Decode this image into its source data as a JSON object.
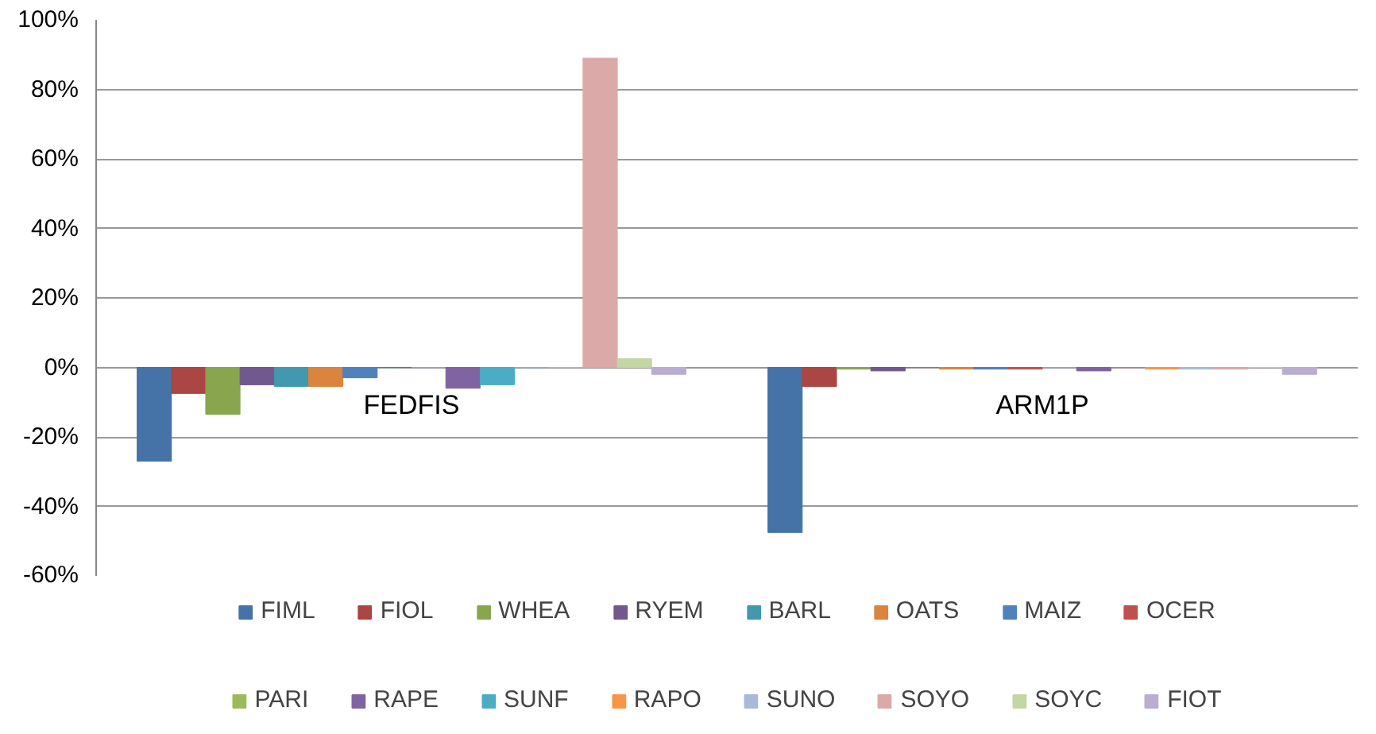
{
  "chart_data": {
    "type": "bar",
    "categories": [
      "FEDFIS",
      "ARM1P"
    ],
    "series": [
      {
        "name": "FIML",
        "color": "#4572a7",
        "values": [
          -27,
          -47.5
        ]
      },
      {
        "name": "FIOL",
        "color": "#aa4643",
        "values": [
          -7.5,
          -5.5
        ]
      },
      {
        "name": "WHEA",
        "color": "#89a54e",
        "values": [
          -13.5,
          -0.5
        ]
      },
      {
        "name": "RYEM",
        "color": "#71588f",
        "values": [
          -5,
          -1
        ]
      },
      {
        "name": "BARL",
        "color": "#4198af",
        "values": [
          -5.5,
          0
        ]
      },
      {
        "name": "OATS",
        "color": "#db843d",
        "values": [
          -5.5,
          -0.5
        ]
      },
      {
        "name": "MAIZ",
        "color": "#4f81bd",
        "values": [
          -3,
          -0.5
        ]
      },
      {
        "name": "OCER",
        "color": "#c0504d",
        "values": [
          0,
          -0.5
        ]
      },
      {
        "name": "PARI",
        "color": "#9bbb59",
        "values": [
          0,
          0
        ]
      },
      {
        "name": "RAPE",
        "color": "#8064a2",
        "values": [
          -6,
          -1
        ]
      },
      {
        "name": "SUNF",
        "color": "#4bacc6",
        "values": [
          -5,
          0
        ]
      },
      {
        "name": "RAPO",
        "color": "#f79646",
        "values": [
          0,
          -0.5
        ]
      },
      {
        "name": "SUNO",
        "color": "#a9b9d9",
        "values": [
          0,
          -0.5
        ]
      },
      {
        "name": "SOYO",
        "color": "#dba9a8",
        "values": [
          89,
          -0.5
        ]
      },
      {
        "name": "SOYC",
        "color": "#c3d6a4",
        "values": [
          2.5,
          0
        ]
      },
      {
        "name": "FIOT",
        "color": "#b9aed1",
        "values": [
          -2,
          -2
        ]
      }
    ],
    "ylim": [
      -60,
      100
    ],
    "yticks": [
      {
        "value": -60,
        "label": "-60%"
      },
      {
        "value": -40,
        "label": "-40%"
      },
      {
        "value": -20,
        "label": "-20%"
      },
      {
        "value": 0,
        "label": "0%"
      },
      {
        "value": 20,
        "label": "20%"
      },
      {
        "value": 40,
        "label": "40%"
      },
      {
        "value": 60,
        "label": "60%"
      },
      {
        "value": 80,
        "label": "80%"
      },
      {
        "value": 100,
        "label": "100%"
      }
    ],
    "grid": "y",
    "legend": "bottom"
  }
}
